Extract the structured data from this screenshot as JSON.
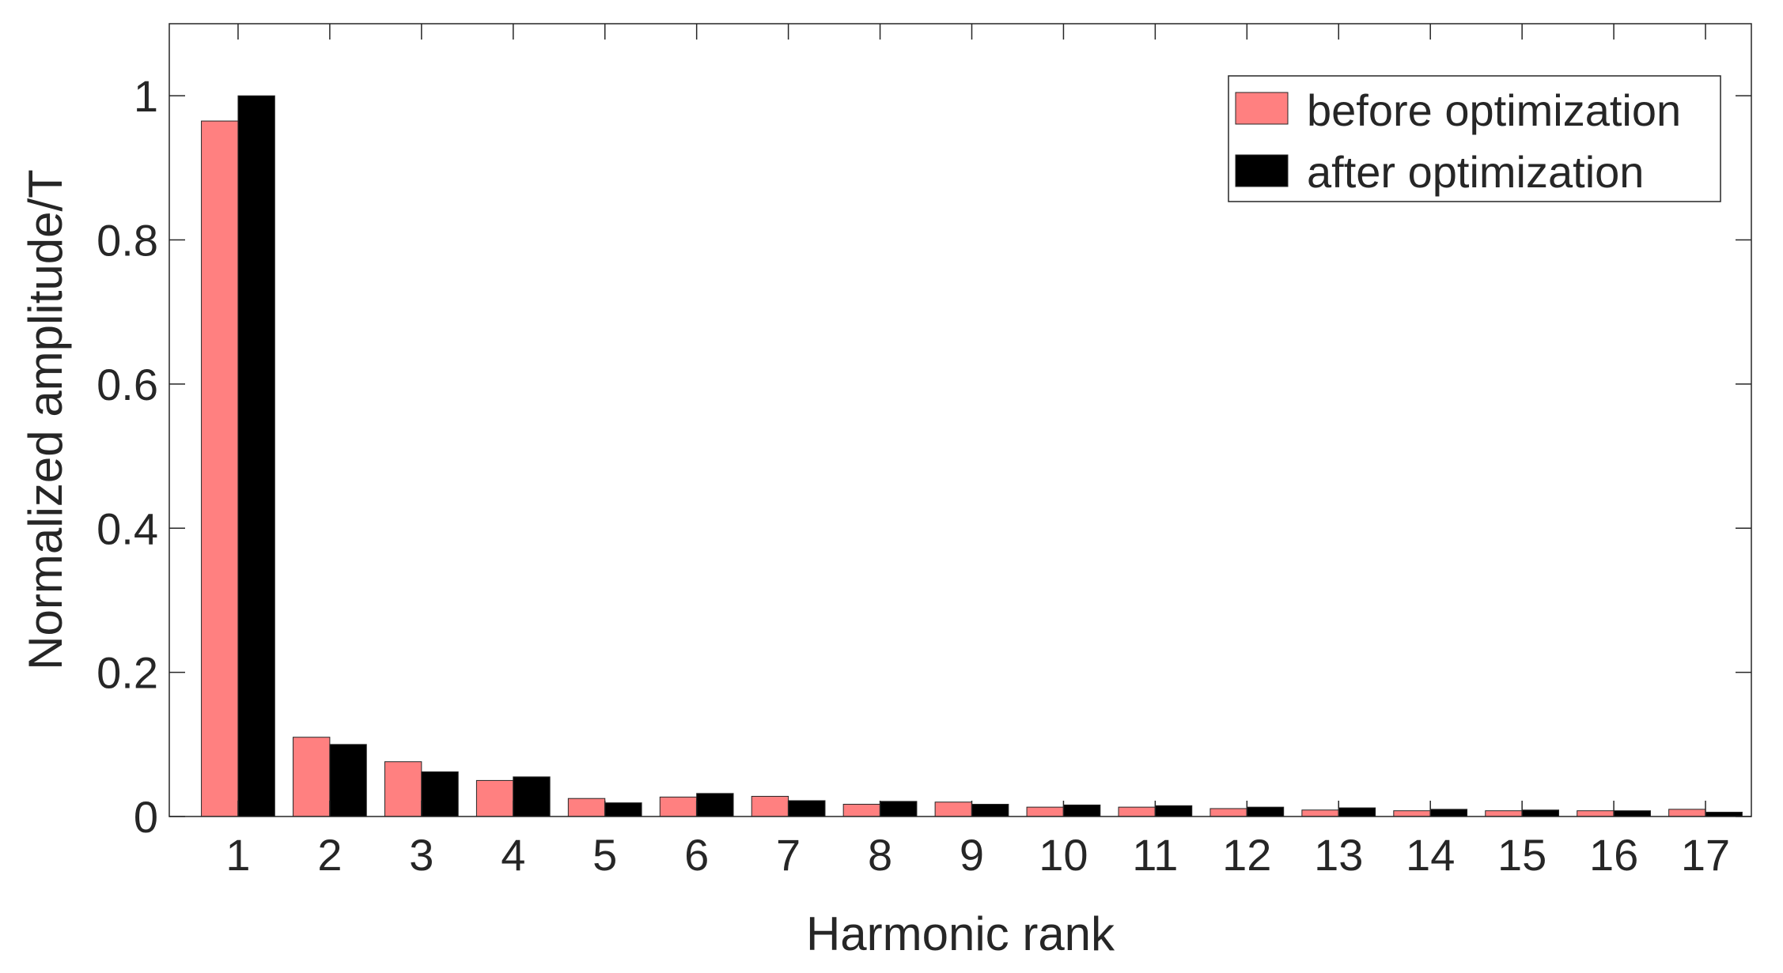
{
  "chart_data": {
    "type": "bar",
    "xlabel": "Harmonic rank",
    "ylabel": "Normalized amplitude/T",
    "categories": [
      "1",
      "2",
      "3",
      "4",
      "5",
      "6",
      "7",
      "8",
      "9",
      "10",
      "11",
      "12",
      "13",
      "14",
      "15",
      "16",
      "17"
    ],
    "ylim": [
      0,
      1.1
    ],
    "yticks": [
      0,
      0.2,
      0.4,
      0.6,
      0.8,
      1
    ],
    "ytick_labels": [
      "0",
      "0.2",
      "0.4",
      "0.6",
      "0.8",
      "1"
    ],
    "grid": false,
    "legend_position": "top-right",
    "series": [
      {
        "name": "before optimization",
        "color": "#FF8080",
        "values": [
          0.965,
          0.11,
          0.076,
          0.05,
          0.025,
          0.027,
          0.028,
          0.017,
          0.02,
          0.013,
          0.013,
          0.011,
          0.009,
          0.008,
          0.008,
          0.008,
          0.01
        ]
      },
      {
        "name": "after optimization",
        "color": "#000000",
        "values": [
          1.0,
          0.1,
          0.062,
          0.055,
          0.019,
          0.032,
          0.022,
          0.021,
          0.017,
          0.016,
          0.015,
          0.013,
          0.012,
          0.01,
          0.009,
          0.008,
          0.006
        ]
      }
    ]
  }
}
